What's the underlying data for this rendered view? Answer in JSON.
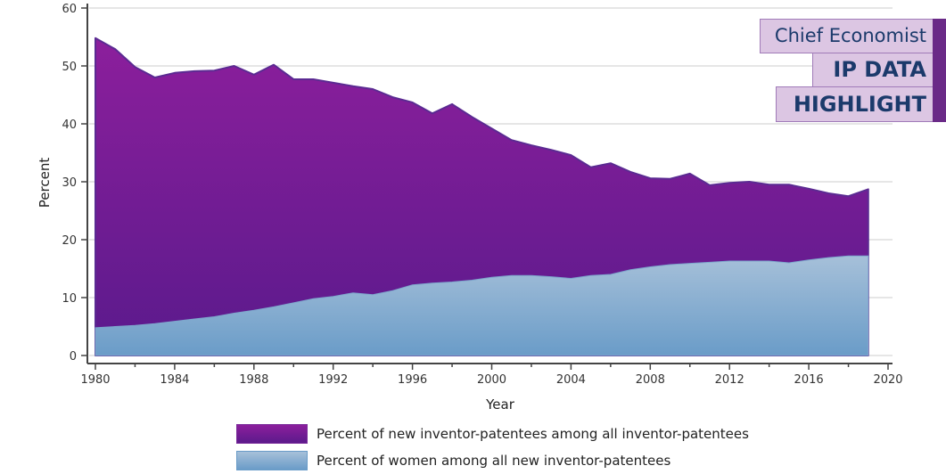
{
  "badge": {
    "line1": "Chief Economist",
    "line2": "IP DATA",
    "line3": "HIGHLIGHT"
  },
  "colors": {
    "new_inventor_top": "#8c1f9c",
    "new_inventor_bottom": "#5c1a8c",
    "women_top": "#a6c0d9",
    "women_bottom": "#6a9cc8",
    "badge_fill": "#dcc6e3",
    "badge_text": "#1b3a6b"
  },
  "chart_data": {
    "type": "area",
    "title": "",
    "xlabel": "Year",
    "ylabel": "Percent",
    "xlim": [
      1980,
      2020
    ],
    "ylim": [
      0,
      60
    ],
    "grid": true,
    "legend_position": "bottom",
    "x_ticks": [
      1980,
      1984,
      1988,
      1992,
      1996,
      2000,
      2004,
      2008,
      2012,
      2016,
      2020
    ],
    "x_tick_labels": [
      "1980",
      "1984",
      "1988",
      "1992",
      "1996",
      "2000",
      "2004",
      "2008",
      "2012",
      "2016",
      "2020"
    ],
    "y_ticks": [
      0,
      10,
      20,
      30,
      40,
      50,
      60
    ],
    "y_tick_labels": [
      "0",
      "10",
      "20",
      "30",
      "40",
      "50",
      "60"
    ],
    "x": [
      1980,
      1981,
      1982,
      1983,
      1984,
      1985,
      1986,
      1987,
      1988,
      1989,
      1990,
      1991,
      1992,
      1993,
      1994,
      1995,
      1996,
      1997,
      1998,
      1999,
      2000,
      2001,
      2002,
      2003,
      2004,
      2005,
      2006,
      2007,
      2008,
      2009,
      2010,
      2011,
      2012,
      2013,
      2014,
      2015,
      2016,
      2017,
      2018,
      2019
    ],
    "series": [
      {
        "name": "Percent of new inventor-patentees among all inventor-patentees",
        "values": [
          54.8,
          52.9,
          49.8,
          48.0,
          48.8,
          49.1,
          49.2,
          50.0,
          48.5,
          50.2,
          47.7,
          47.7,
          47.1,
          46.5,
          46.0,
          44.6,
          43.7,
          41.8,
          43.4,
          41.2,
          39.2,
          37.2,
          36.3,
          35.5,
          34.6,
          32.5,
          33.2,
          31.7,
          30.6,
          30.5,
          31.4,
          29.4,
          29.8,
          30.0,
          29.5,
          29.5,
          28.8,
          28.0,
          27.5,
          28.7
        ]
      },
      {
        "name": "Percent of women among all new inventor-patentees",
        "values": [
          4.8,
          5.0,
          5.2,
          5.5,
          5.9,
          6.3,
          6.7,
          7.3,
          7.8,
          8.4,
          9.1,
          9.8,
          10.2,
          10.8,
          10.5,
          11.2,
          12.2,
          12.5,
          12.7,
          13.0,
          13.5,
          13.8,
          13.8,
          13.6,
          13.3,
          13.8,
          14.0,
          14.8,
          15.3,
          15.7,
          15.9,
          16.1,
          16.3,
          16.3,
          16.3,
          16.0,
          16.5,
          16.9,
          17.2,
          17.2
        ]
      }
    ]
  }
}
